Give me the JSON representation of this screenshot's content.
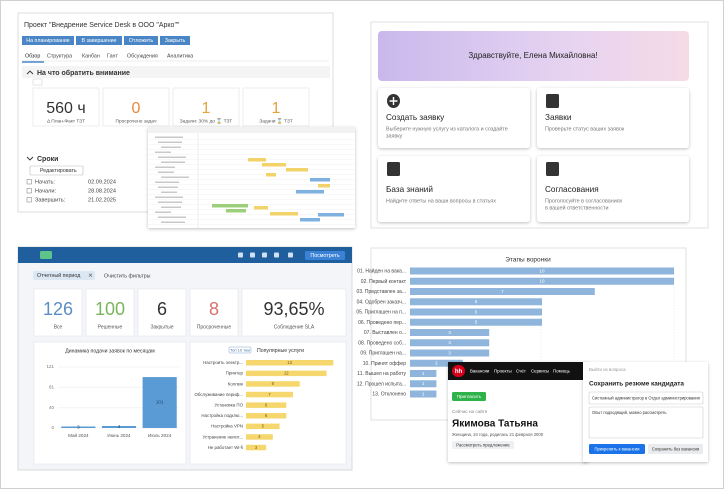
{
  "project": {
    "title": "Проект \"Внедрение Service Desk в ООО \"Арко\"\"",
    "buttons": [
      "На планирование",
      "В завершение",
      "Отложить",
      "Закрыть"
    ],
    "tabs": [
      "Обзор",
      "Структура",
      "Канбан",
      "Гант",
      "Обсуждения",
      "Аналитика"
    ],
    "attention_title": "На что обратить внимание",
    "kpis": [
      {
        "value": "560 ч",
        "label": "Δ План-Факт ТЗТ"
      },
      {
        "value": "0",
        "label": "Просрочено задач"
      },
      {
        "value": "1",
        "label": "Задачи: 30% до ⌛ ТЗТ"
      },
      {
        "value": "1",
        "label": "Задачи ⌛ ТЗТ"
      }
    ],
    "deadlines_title": "Сроки",
    "edit": "Редактировать",
    "dates": [
      {
        "label": "Начать:",
        "value": "02.09.2024"
      },
      {
        "label": "Начали:",
        "value": "28.08.2024"
      },
      {
        "label": "Завершить:",
        "value": "21.02.2025"
      }
    ]
  },
  "portal": {
    "greeting": "Здравствуйте, Елена Михайловна!",
    "cards": [
      {
        "title": "Создать заявку",
        "text": [
          "Выберите нужную услугу из каталога и создайте",
          "заявку"
        ]
      },
      {
        "title": "Заявки",
        "text": [
          "Проверьте статус ваших заявок"
        ]
      },
      {
        "title": "База знаний",
        "text": [
          "Найдите ответы на ваши вопросы в статьях"
        ]
      },
      {
        "title": "Согласования",
        "text": [
          "Проголосуйте в согласованиях",
          "в вашей ответственности"
        ]
      }
    ]
  },
  "dashboard": {
    "button": "Посмотреть",
    "filter": "Отчетный период",
    "clear": "Очистить фильтры",
    "kpis": [
      {
        "value": 126,
        "label": "Все",
        "color": "#5b8ec4"
      },
      {
        "value": 100,
        "label": "Решенные",
        "color": "#7ab55c"
      },
      {
        "value": 6,
        "label": "Закрытые",
        "color": "#333333"
      },
      {
        "value": 8,
        "label": "Просроченные",
        "color": "#d9706f"
      },
      {
        "value": "93,65%",
        "label": "Соблюдение SLA",
        "color": "#333333"
      }
    ],
    "monthly": {
      "title": "Динамика подачи заявок по месяцам",
      "categories": [
        "Май 2024",
        "Июнь 2024",
        "Июль 2024"
      ],
      "values": [
        3,
        4,
        101
      ],
      "ylim": [
        0,
        121
      ],
      "yticks": [
        0,
        40,
        81,
        121
      ],
      "color": "#5b9bd5"
    },
    "services": {
      "badge": "Топ 10 тем",
      "title": "Популярные услуги",
      "categories": [
        "Настроить электр...",
        "Принтер",
        "Коллеж",
        "Обслуживание периф...",
        "Установка ПО",
        "Настройка подклю...",
        "Настройка VPN",
        "Устранение неисп...",
        "Не работает Wi-fi"
      ],
      "values": [
        13,
        12,
        8,
        7,
        6,
        6,
        5,
        4,
        3
      ],
      "xlim": [
        0,
        14
      ],
      "color": "#f5d76e"
    }
  },
  "funnel": {
    "title": "Этапы воронки",
    "categories": [
      "01. Найден на вака...",
      "02. Первый контакт",
      "03. Представлен за...",
      "04. Одобрен заказч...",
      "05. Приглашен на п...",
      "06. Проведено пер...",
      "07. Выставлен о...",
      "08. Проведено соб...",
      "09. Приглашен на...",
      "10. Принят оффер",
      "11. Вышел на работу",
      "12. Прошел испыта...",
      "13. Отклонено"
    ],
    "values": [
      10,
      10,
      7,
      5,
      5,
      5,
      3,
      3,
      3,
      2,
      1,
      1,
      1
    ],
    "xlim": [
      0,
      10
    ],
    "color": "#8fb5dc"
  },
  "hh": {
    "logo": "hh",
    "nav": [
      "Вакансии",
      "Проекты",
      "Счёт",
      "Сервисы",
      "Помощь"
    ],
    "invite": "Пригласить",
    "online": "Сейчас на сайте",
    "name": "Якимова Татьяна",
    "info": "Женщина, 24 года, родилась 21 февраля 2000",
    "consider": "Рассмотреть предложение",
    "side_top": "Выйти из вопроса",
    "side_title": "Сохранить резюме кандидата",
    "position": "Системный администратор в Отдел администрирования",
    "comment": "Опыт подходящий, можно рассмотреть",
    "attach": "Прикрепить к вакансии",
    "save": "Сохранить без вакансии"
  }
}
